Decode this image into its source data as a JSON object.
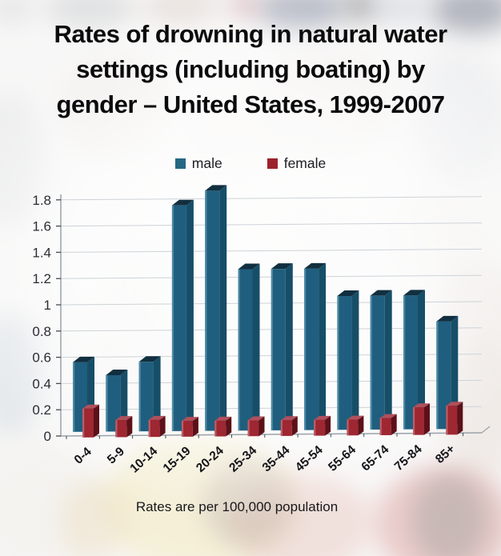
{
  "title": {
    "lines": [
      "Rates of drowning in natural water",
      "settings (including boating) by",
      "gender – United States, 1999-2007"
    ]
  },
  "legend": [
    {
      "label": "male",
      "color": "#256883"
    },
    {
      "label": "female",
      "color": "#9c212c"
    }
  ],
  "caption": "Rates are per 100,000 population",
  "chart_data": {
    "type": "bar",
    "style": "3d-column",
    "title": "Rates of drowning in natural water settings (including boating) by gender – United States, 1999-2007",
    "note": "Rates are per 100,000 population",
    "categories": [
      "0-4",
      "5-9",
      "10-14",
      "15-19",
      "20-24",
      "25-34",
      "35-44",
      "45-54",
      "55-64",
      "65-74",
      "75-84",
      "85+"
    ],
    "series": [
      {
        "name": "male",
        "color": "#1f5e7e",
        "values": [
          0.53,
          0.43,
          0.53,
          1.72,
          1.83,
          1.23,
          1.23,
          1.23,
          1.02,
          1.02,
          1.02,
          0.82
        ]
      },
      {
        "name": "female",
        "color": "#9e2732",
        "values": [
          0.22,
          0.13,
          0.13,
          0.12,
          0.12,
          0.12,
          0.12,
          0.12,
          0.12,
          0.13,
          0.21,
          0.22
        ]
      }
    ],
    "xlabel": "",
    "ylabel": "",
    "ylim": [
      0,
      1.8
    ],
    "ytick_step": 0.2,
    "yticks": [
      "0",
      "0.2",
      "0.4",
      "0.6",
      "0.8",
      "1",
      "1.2",
      "1.4",
      "1.6",
      "1.8"
    ],
    "grid": true,
    "legend_position": "top"
  }
}
